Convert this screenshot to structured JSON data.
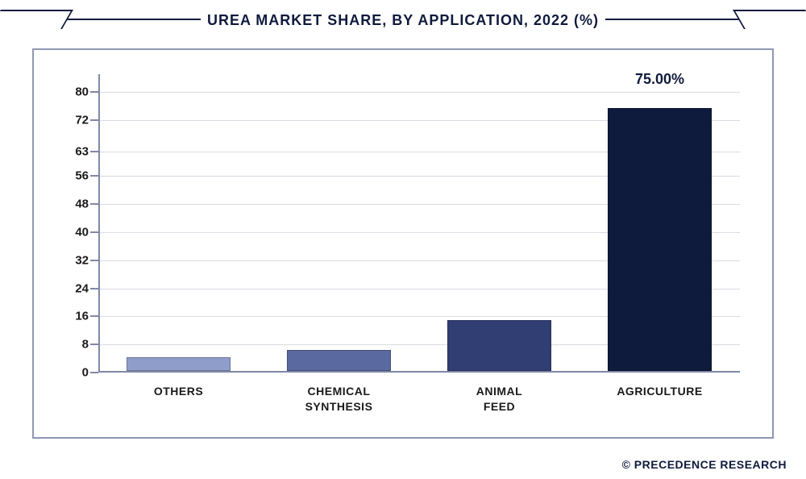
{
  "title": "UREA MARKET SHARE, BY APPLICATION, 2022 (%)",
  "title_fontsize": 18,
  "title_color": "#0f1b3d",
  "chart": {
    "type": "bar",
    "categories": [
      "OTHERS",
      "CHEMICAL\nSYNTHESIS",
      "ANIMAL\nFEED",
      "AGRICULTURE"
    ],
    "values": [
      4,
      6,
      14.5,
      75
    ],
    "bar_colors": [
      "#8e9dc9",
      "#5a6aa0",
      "#313e74",
      "#0f1b3d"
    ],
    "value_labels": [
      "",
      "",
      "",
      "75.00%"
    ],
    "value_label_fontsize": 18,
    "ylim": [
      0,
      85
    ],
    "yticks": [
      0,
      8,
      16,
      24,
      32,
      40,
      48,
      56,
      63,
      72,
      80
    ],
    "xlabel_fontsize": 14,
    "ylabel_fontsize": 15,
    "axis_color": "#7f88a6",
    "grid_color": "#d9dbe3",
    "frame_border_color": "#8f98b4",
    "background_color": "#ffffff",
    "bar_width": 0.74
  },
  "footer": "© PRECEDENCE RESEARCH"
}
